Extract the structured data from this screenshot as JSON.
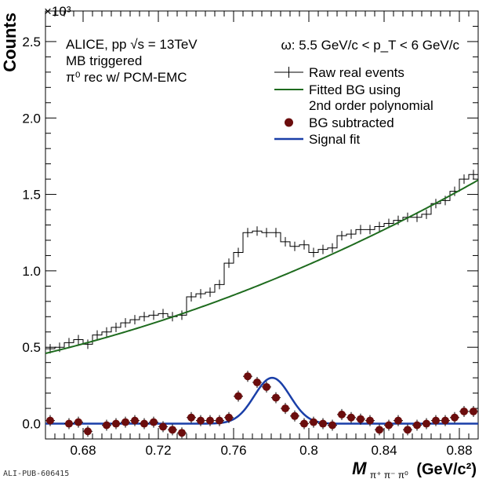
{
  "chart_data": {
    "type": "line",
    "x_range": [
      0.66,
      0.89
    ],
    "y_range": [
      -0.1,
      2.7
    ],
    "y_scale_label": "×10³",
    "xlabel_main": "M",
    "xlabel_sub": "π⁺ π⁻ π⁰",
    "xlabel_unit": "(GeV/c²)",
    "ylabel": "Counts",
    "x_ticks": [
      0.68,
      0.72,
      0.76,
      0.8,
      0.84,
      0.88
    ],
    "x_tick_labels": [
      "0.68",
      "0.72",
      "0.76",
      "0.8",
      "0.84",
      "0.88"
    ],
    "y_ticks": [
      0.0,
      0.5,
      1.0,
      1.5,
      2.0,
      2.5
    ],
    "y_tick_labels": [
      "0.0",
      "0.5",
      "1.0",
      "1.5",
      "2.0",
      "2.5"
    ],
    "info_lines": [
      "ALICE, pp √s = 13TeV",
      "MB triggered",
      "π⁰ rec w/ PCM-EMC"
    ],
    "range_label": "ω: 5.5 GeV/c < p_T < 6 GeV/c",
    "legend": [
      {
        "label": "Raw real events",
        "kind": "histogram"
      },
      {
        "label": "Fitted BG using",
        "kind": "line",
        "color": "#1e6b1e"
      },
      {
        "label": "2nd order polynomial",
        "kind": "none"
      },
      {
        "label": "BG subtracted",
        "kind": "marker",
        "color": "#6b0d0d"
      },
      {
        "label": "Signal fit",
        "kind": "line",
        "color": "#1a3fa8"
      }
    ],
    "bin_width": 0.005,
    "series": [
      {
        "name": "Raw real events",
        "x": [
          0.6625,
          0.6675,
          0.6725,
          0.6775,
          0.6825,
          0.6875,
          0.6925,
          0.6975,
          0.7025,
          0.7075,
          0.7125,
          0.7175,
          0.7225,
          0.7275,
          0.7325,
          0.7375,
          0.7425,
          0.7475,
          0.7525,
          0.7575,
          0.7625,
          0.7675,
          0.7725,
          0.7775,
          0.7825,
          0.7875,
          0.7925,
          0.7975,
          0.8025,
          0.8075,
          0.8125,
          0.8175,
          0.8225,
          0.8275,
          0.8325,
          0.8375,
          0.8425,
          0.8475,
          0.8525,
          0.8575,
          0.8625,
          0.8675,
          0.8725,
          0.8775,
          0.8825,
          0.8875
        ],
        "y": [
          0.49,
          0.5,
          0.53,
          0.55,
          0.52,
          0.58,
          0.6,
          0.63,
          0.66,
          0.68,
          0.7,
          0.71,
          0.72,
          0.7,
          0.71,
          0.83,
          0.85,
          0.86,
          0.91,
          1.05,
          1.12,
          1.25,
          1.26,
          1.25,
          1.25,
          1.19,
          1.16,
          1.17,
          1.12,
          1.14,
          1.15,
          1.23,
          1.24,
          1.27,
          1.27,
          1.29,
          1.31,
          1.33,
          1.35,
          1.35,
          1.37,
          1.44,
          1.46,
          1.52,
          1.6,
          1.63
        ]
      },
      {
        "name": "Fitted BG using 2nd order polynomial",
        "polynomial": {
          "x0": 0.66,
          "c0": 0.46,
          "c1": 2.95,
          "c2": 8.6
        },
        "x_range": [
          0.66,
          0.89
        ]
      },
      {
        "name": "BG subtracted",
        "x": [
          0.6625,
          0.6725,
          0.6775,
          0.6825,
          0.6925,
          0.6975,
          0.7025,
          0.7075,
          0.7125,
          0.7175,
          0.7225,
          0.7275,
          0.7325,
          0.7375,
          0.7425,
          0.7475,
          0.7525,
          0.7575,
          0.7625,
          0.7675,
          0.7725,
          0.7775,
          0.7825,
          0.7875,
          0.7925,
          0.7975,
          0.8025,
          0.8075,
          0.8125,
          0.8175,
          0.8225,
          0.8275,
          0.8325,
          0.8375,
          0.8425,
          0.8475,
          0.8525,
          0.8575,
          0.8625,
          0.8675,
          0.8725,
          0.8775,
          0.8825,
          0.8875
        ],
        "y": [
          0.02,
          0.0,
          0.01,
          -0.05,
          -0.01,
          0.0,
          0.01,
          0.02,
          0.0,
          0.01,
          -0.02,
          -0.04,
          -0.06,
          0.04,
          0.02,
          0.02,
          0.02,
          0.04,
          0.18,
          0.31,
          0.27,
          0.24,
          0.17,
          0.1,
          0.05,
          0.0,
          0.01,
          0.0,
          -0.01,
          0.06,
          0.04,
          0.03,
          0.02,
          -0.04,
          -0.01,
          0.02,
          -0.04,
          -0.01,
          0.0,
          0.02,
          0.02,
          0.04,
          0.08,
          0.08
        ]
      },
      {
        "name": "Signal fit",
        "gaussian": {
          "amp": 0.3,
          "mean": 0.7805,
          "sigma": 0.0095
        },
        "x_range": [
          0.66,
          0.89
        ]
      }
    ]
  },
  "footer": "ALI-PUB-606415"
}
